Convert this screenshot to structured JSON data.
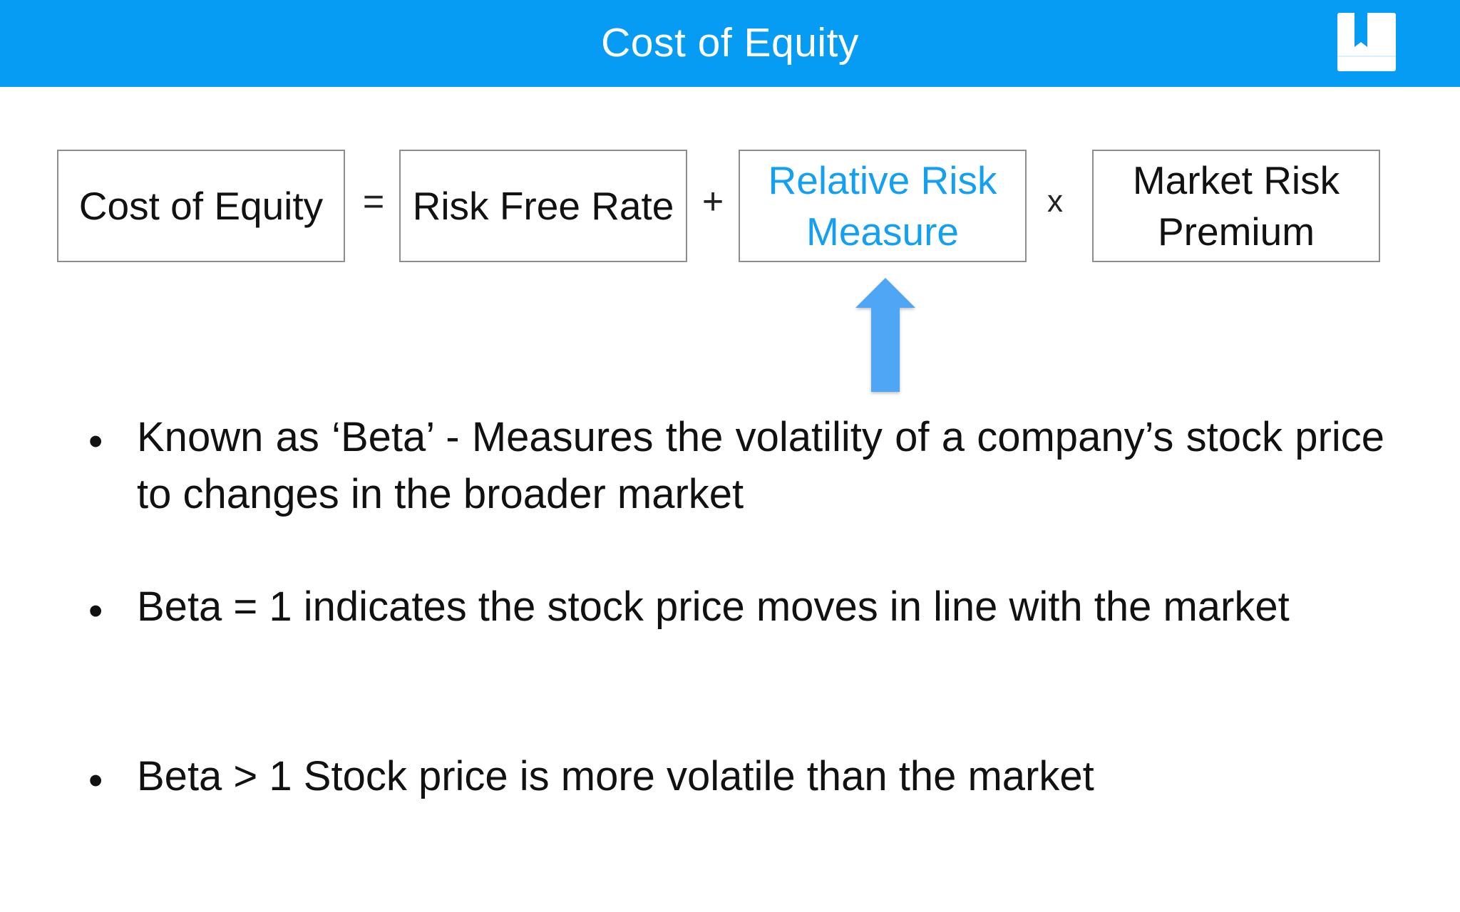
{
  "header": {
    "title": "Cost of Equity",
    "logo_icon": "bookmark-book-logo-icon",
    "background_color": "#079cf3"
  },
  "formula": {
    "terms": [
      {
        "label": "Cost of Equity",
        "highlighted": false
      },
      {
        "label": "Risk Free Rate",
        "highlighted": false
      },
      {
        "label": "Relative Risk Measure",
        "line1": "Relative Risk",
        "line2": "Measure",
        "highlighted": true
      },
      {
        "label": "Market Risk Premium",
        "line1": "Market Risk",
        "line2": "Premium",
        "highlighted": false
      }
    ],
    "operators": [
      "=",
      "+",
      "x"
    ],
    "highlight_color": "#14a0f2"
  },
  "pointer_arrow": {
    "icon": "up-arrow-icon",
    "color": "#4fa6f5"
  },
  "bullets": [
    "Known as ‘Beta’ - Measures the volatility of a company’s stock price to changes in the broader market",
    "Beta = 1 indicates the stock price moves in line with the market",
    "Beta > 1 Stock price is more volatile than the market"
  ],
  "bullet_glyph": "•"
}
